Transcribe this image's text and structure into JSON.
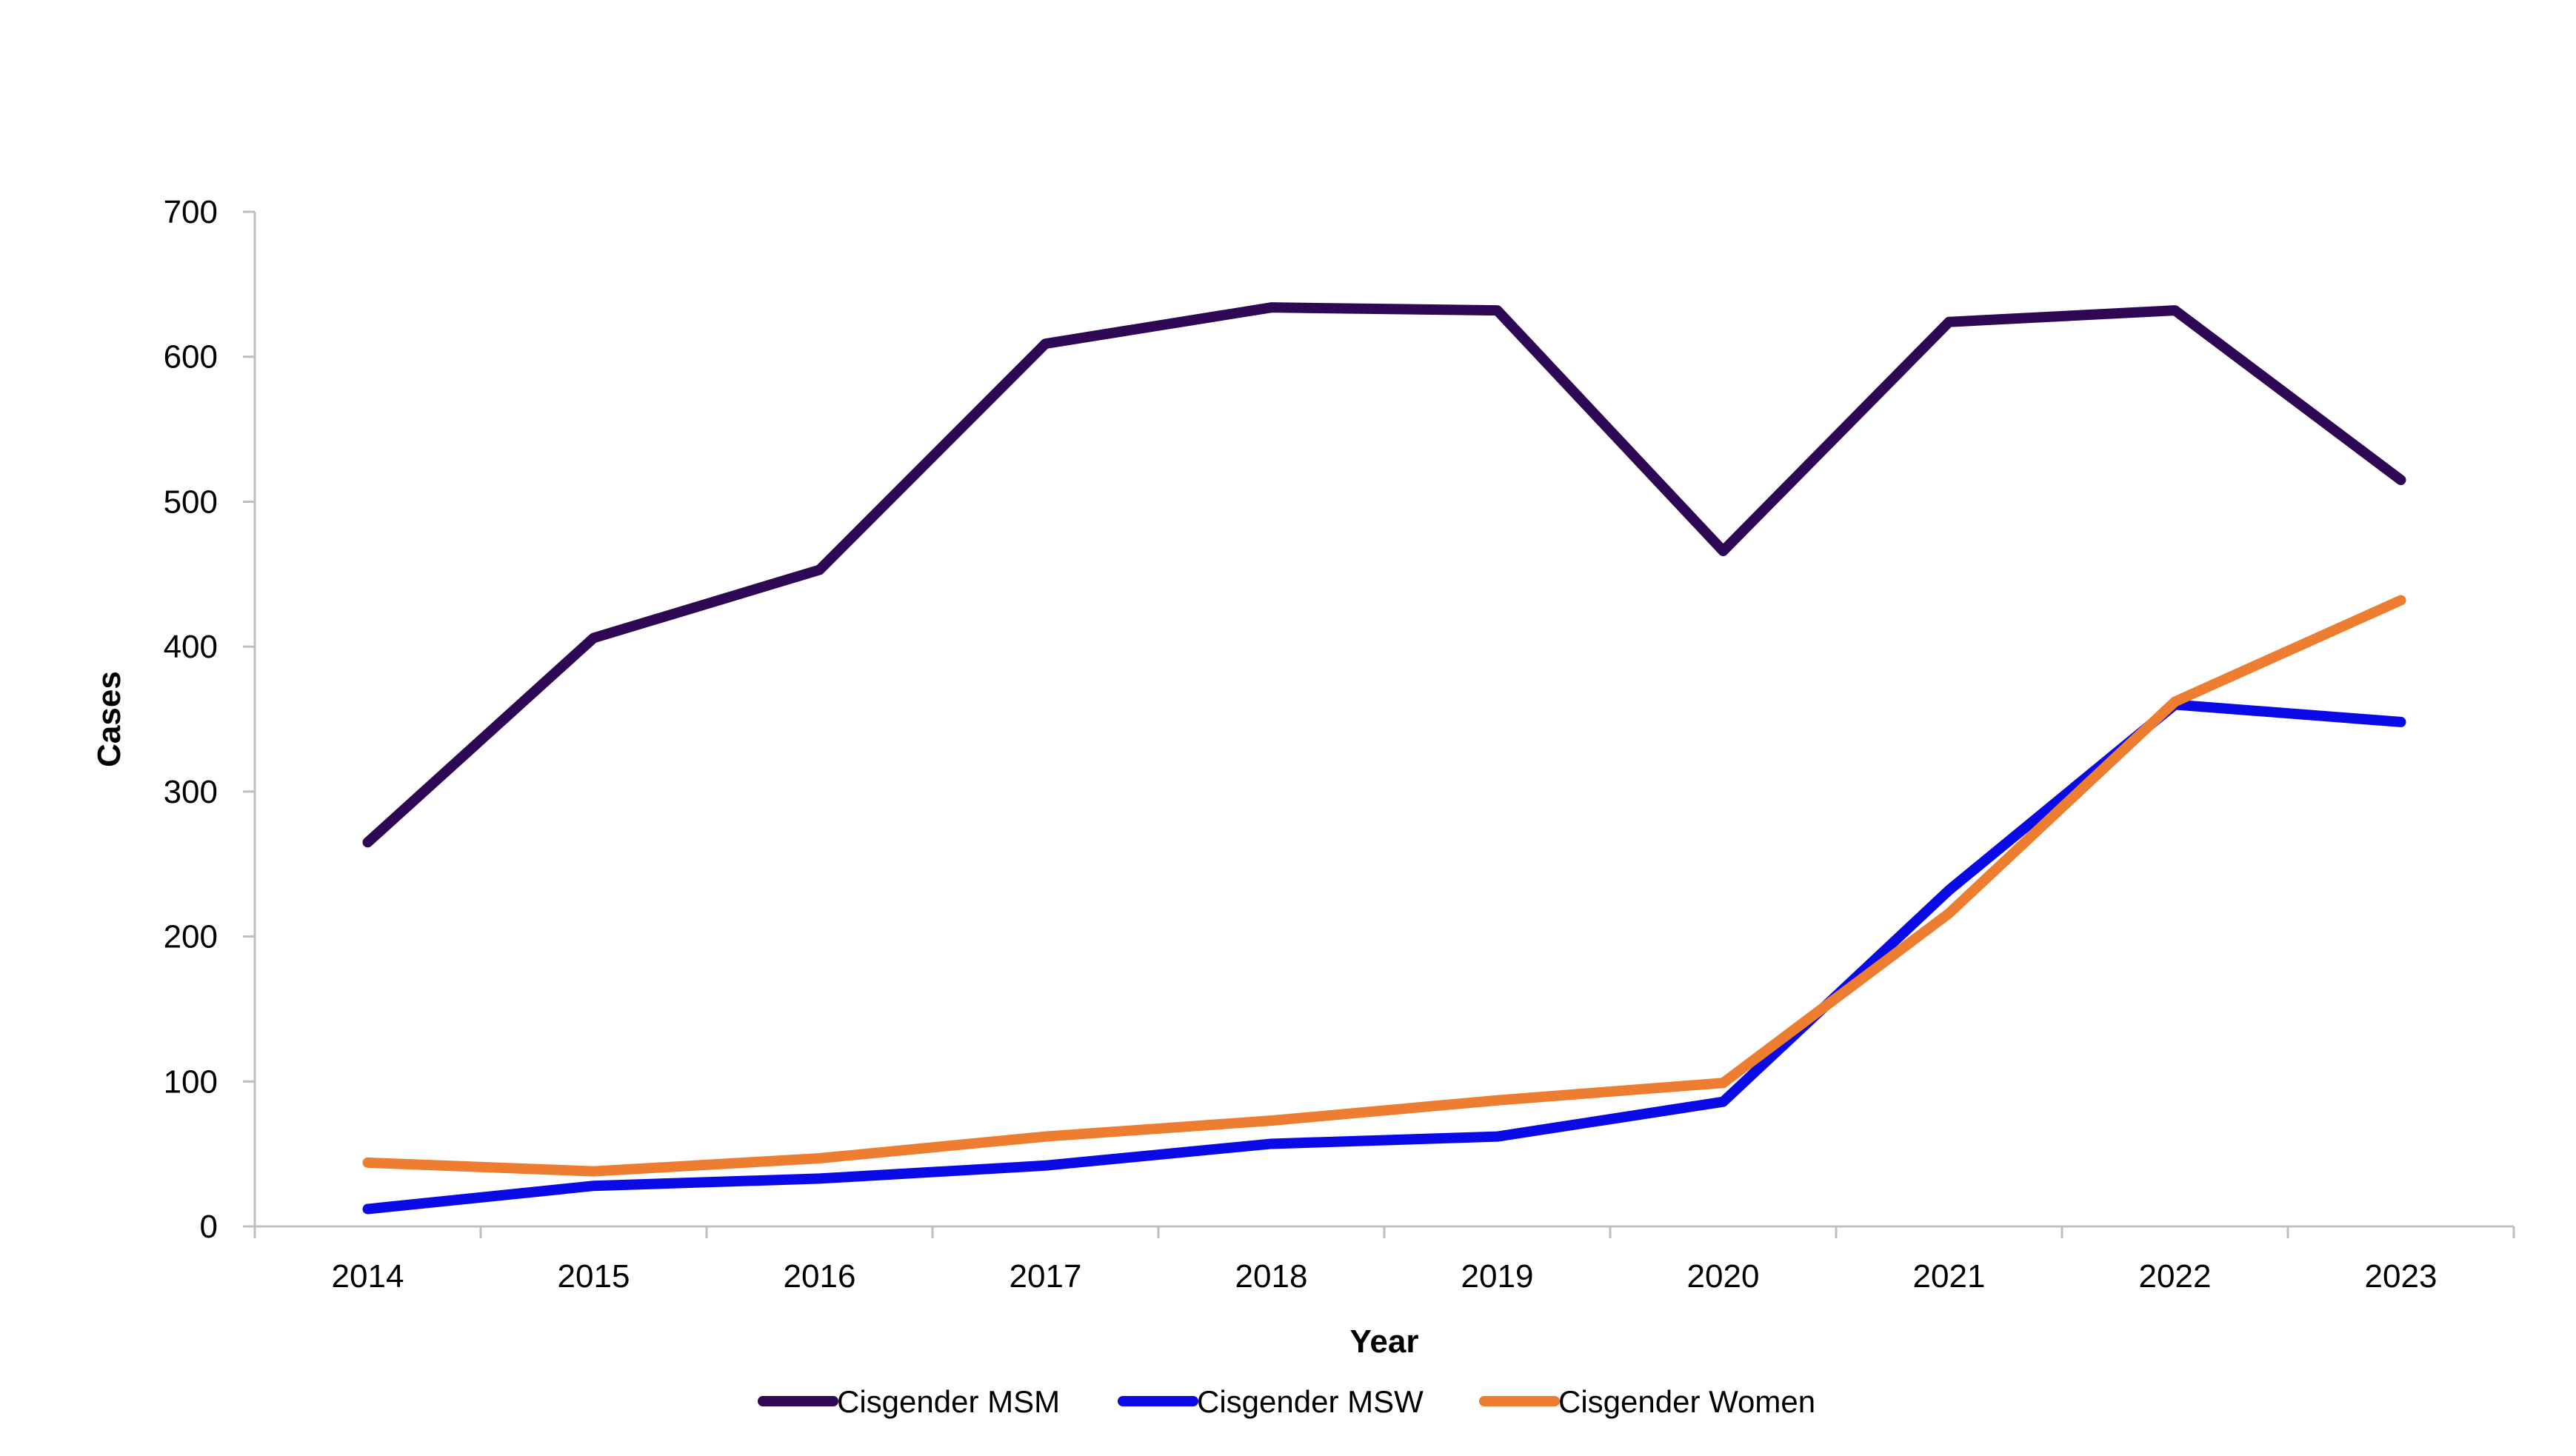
{
  "chart_data": {
    "type": "line",
    "xlabel": "Year",
    "ylabel": "Cases",
    "categories": [
      "2014",
      "2015",
      "2016",
      "2017",
      "2018",
      "2019",
      "2020",
      "2021",
      "2022",
      "2023"
    ],
    "ylim": [
      0,
      700
    ],
    "yticks": [
      "0",
      "100",
      "200",
      "300",
      "400",
      "500",
      "600",
      "700"
    ],
    "grid": false,
    "legend_position": "bottom",
    "series": [
      {
        "name": "Cisgender MSM",
        "color": "#2e0854",
        "values": [
          265,
          406,
          453,
          609,
          634,
          632,
          466,
          624,
          632,
          515
        ]
      },
      {
        "name": "Cisgender MSW",
        "color": "#0a0ae6",
        "values": [
          12,
          28,
          33,
          42,
          57,
          62,
          86,
          232,
          360,
          348
        ]
      },
      {
        "name": "Cisgender Women",
        "color": "#ed7d31",
        "values": [
          44,
          38,
          47,
          62,
          73,
          87,
          99,
          216,
          362,
          432
        ]
      }
    ]
  }
}
